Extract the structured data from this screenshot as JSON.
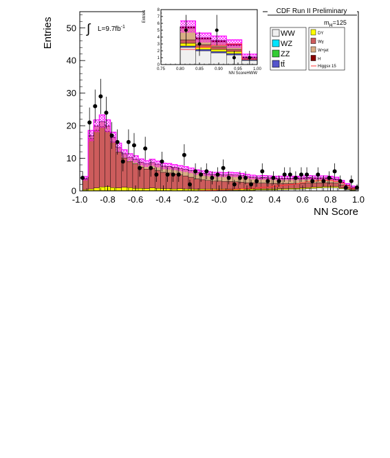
{
  "header": {
    "title": "CDF Run II Preliminary",
    "mass_label_pre": "m",
    "mass_label_sub": "H",
    "mass_label_post": "=125"
  },
  "luminosity": {
    "integral_sign": "∫",
    "text": "L=9.7fb",
    "sup": "-1"
  },
  "chart_data": [
    {
      "type": "bar",
      "stacked": true,
      "xlabel": "NN Score",
      "ylabel": "Entries",
      "xlim": [
        -1.0,
        1.0
      ],
      "ylim": [
        0,
        55
      ],
      "xticks": [
        -1.0,
        -0.8,
        -0.6,
        -0.4,
        -0.2,
        0.0,
        0.2,
        0.4,
        0.6,
        0.8,
        1.0
      ],
      "xtick_labels": [
        "-1.0",
        "-0.8",
        "-0.6",
        "-0.4",
        "-0.2",
        "-0.0",
        "0.2",
        "0.4",
        "0.6",
        "0.8",
        "1.0"
      ],
      "yticks": [
        0,
        10,
        20,
        30,
        40,
        50
      ],
      "ytick_labels": [
        "0",
        "10",
        "20",
        "30",
        "40",
        "50"
      ],
      "bin_edges": [
        -0.98,
        -0.94,
        -0.9,
        -0.86,
        -0.82,
        -0.78,
        -0.74,
        -0.7,
        -0.66,
        -0.62,
        -0.58,
        -0.54,
        -0.5,
        -0.46,
        -0.42,
        -0.38,
        -0.34,
        -0.3,
        -0.26,
        -0.22,
        -0.18,
        -0.14,
        -0.1,
        -0.06,
        -0.02,
        0.02,
        0.06,
        0.1,
        0.14,
        0.18,
        0.22,
        0.26,
        0.3,
        0.34,
        0.38,
        0.42,
        0.46,
        0.5,
        0.54,
        0.58,
        0.62,
        0.66,
        0.7,
        0.74,
        0.78,
        0.82,
        0.86,
        0.9,
        0.94,
        0.98
      ],
      "series": [
        {
          "name": "WW",
          "color": "#f0f0f0",
          "values": [
            0.1,
            0.1,
            0.1,
            0.1,
            0.1,
            0.1,
            0.1,
            0.1,
            0.1,
            0.1,
            0.1,
            0.1,
            0.1,
            0.1,
            0.1,
            0.1,
            0.1,
            0.1,
            0.1,
            0.1,
            0.1,
            0.2,
            0.2,
            0.2,
            0.2,
            0.2,
            0.2,
            0.2,
            0.2,
            0.2,
            0.2,
            0.3,
            0.3,
            0.3,
            0.3,
            0.4,
            0.4,
            0.5,
            0.5,
            0.6,
            0.7,
            0.8,
            0.9,
            1.0,
            1.0,
            1.0,
            0.7,
            0.4,
            0.2
          ]
        },
        {
          "name": "WZ",
          "color": "#00e5ff",
          "values": [
            0,
            0,
            0,
            0,
            0,
            0,
            0,
            0,
            0,
            0,
            0,
            0,
            0,
            0,
            0,
            0,
            0,
            0,
            0,
            0,
            0,
            0,
            0,
            0,
            0,
            0,
            0,
            0,
            0,
            0,
            0,
            0,
            0,
            0,
            0,
            0,
            0,
            0,
            0,
            0,
            0,
            0,
            0,
            0,
            0,
            0,
            0,
            0,
            0
          ]
        },
        {
          "name": "ZZ",
          "color": "#33cc33",
          "values": [
            0,
            0,
            0,
            0,
            0,
            0,
            0,
            0,
            0,
            0,
            0,
            0,
            0,
            0,
            0,
            0,
            0,
            0,
            0,
            0,
            0,
            0,
            0,
            0,
            0,
            0,
            0,
            0,
            0,
            0,
            0,
            0,
            0,
            0,
            0,
            0,
            0,
            0,
            0,
            0,
            0,
            0,
            0,
            0,
            0,
            0,
            0,
            0,
            0
          ]
        },
        {
          "name": "tt̄",
          "color": "#5555cc",
          "values": [
            0,
            0,
            0,
            0,
            0,
            0,
            0,
            0,
            0,
            0,
            0,
            0,
            0,
            0,
            0,
            0,
            0,
            0,
            0,
            0,
            0,
            0,
            0,
            0,
            0,
            0,
            0,
            0,
            0,
            0,
            0,
            0,
            0,
            0,
            0,
            0,
            0,
            0,
            0,
            0,
            0,
            0,
            0,
            0,
            0,
            0,
            0,
            0,
            0
          ]
        },
        {
          "name": "DY",
          "color": "#ffff00",
          "values": [
            0.3,
            0.5,
            0.8,
            1.1,
            1.2,
            0.9,
            0.8,
            1.0,
            0.9,
            0.7,
            0.7,
            0.6,
            0.8,
            0.7,
            0.6,
            0.6,
            0.5,
            0.6,
            0.5,
            0.5,
            0.4,
            0.4,
            0.4,
            0.4,
            0.4,
            0.4,
            0.4,
            0.4,
            0.4,
            0.3,
            0.4,
            0.3,
            0.3,
            0.3,
            0.3,
            0.3,
            0.3,
            0.3,
            0.3,
            0.3,
            0.3,
            0.3,
            0.3,
            0.3,
            0.3,
            0.3,
            0.2,
            0.2,
            0.2
          ]
        },
        {
          "name": "Wγ",
          "color": "#cc5c5c",
          "values": [
            3.2,
            15.5,
            17.8,
            18.5,
            17.0,
            14.0,
            11.0,
            9.0,
            8.0,
            7.5,
            6.5,
            6.0,
            6.0,
            5.5,
            5.0,
            4.8,
            4.6,
            4.2,
            4.0,
            3.6,
            3.2,
            2.8,
            2.6,
            2.4,
            2.4,
            2.3,
            2.3,
            2.2,
            2.1,
            2.0,
            1.9,
            1.8,
            1.8,
            1.7,
            1.7,
            1.6,
            1.6,
            1.5,
            1.5,
            1.4,
            1.4,
            1.3,
            1.3,
            1.2,
            1.2,
            1.1,
            0.9,
            0.6,
            0.3
          ]
        },
        {
          "name": "W+jet",
          "color": "#d9ae85",
          "values": [
            0.2,
            0.8,
            1.2,
            1.6,
            1.6,
            1.4,
            1.4,
            1.3,
            1.3,
            1.4,
            1.5,
            1.6,
            1.8,
            1.9,
            1.9,
            2.0,
            2.0,
            2.0,
            2.0,
            2.0,
            2.0,
            2.0,
            2.0,
            2.0,
            2.0,
            2.0,
            2.1,
            2.1,
            2.0,
            1.9,
            1.7,
            1.5,
            1.6,
            1.6,
            1.5,
            1.5,
            1.5,
            1.5,
            1.5,
            1.5,
            1.5,
            1.4,
            1.3,
            1.3,
            1.2,
            1.0,
            0.8,
            0.5,
            0.3
          ]
        },
        {
          "name": "H",
          "color": "#880000",
          "values": [
            0,
            0,
            0,
            0,
            0,
            0,
            0,
            0,
            0,
            0,
            0,
            0,
            0,
            0,
            0,
            0,
            0,
            0,
            0,
            0,
            0,
            0,
            0,
            0,
            0,
            0,
            0,
            0,
            0,
            0,
            0,
            0.1,
            0.1,
            0.1,
            0.1,
            0.1,
            0.1,
            0.1,
            0.1,
            0.2,
            0.2,
            0.2,
            0.2,
            0.2,
            0.2,
            0.2,
            0.1,
            0.1,
            0.1
          ]
        }
      ],
      "uncertainty_band": {
        "name": "",
        "color": "#ff00ff",
        "rel": 0.08
      },
      "higgs_overlay": {
        "name": "Higgsx 15",
        "color": "#ff3333",
        "values": [
          0,
          0,
          0,
          0,
          0,
          0,
          0,
          0,
          0,
          0,
          0,
          0,
          0,
          0,
          0,
          0,
          0,
          0,
          0,
          0,
          0,
          0.1,
          0.2,
          0.2,
          0.3,
          0.3,
          0.4,
          0.5,
          0.6,
          0.7,
          0.8,
          0.9,
          1.1,
          1.2,
          1.4,
          1.6,
          1.8,
          2.0,
          2.2,
          2.5,
          2.8,
          3.0,
          3.2,
          3.3,
          3.2,
          2.9,
          2.4,
          1.6,
          0.8
        ]
      },
      "data": {
        "name": "Data",
        "x": [
          -0.98,
          -0.93,
          -0.89,
          -0.85,
          -0.81,
          -0.77,
          -0.73,
          -0.69,
          -0.65,
          -0.61,
          -0.57,
          -0.53,
          -0.49,
          -0.45,
          -0.41,
          -0.37,
          -0.33,
          -0.29,
          -0.25,
          -0.21,
          -0.17,
          -0.13,
          -0.09,
          -0.05,
          -0.01,
          0.03,
          0.07,
          0.11,
          0.15,
          0.19,
          0.23,
          0.27,
          0.31,
          0.35,
          0.39,
          0.43,
          0.47,
          0.51,
          0.55,
          0.59,
          0.63,
          0.67,
          0.71,
          0.75,
          0.79,
          0.83,
          0.87,
          0.91,
          0.95,
          0.99
        ],
        "y": [
          4,
          21,
          26,
          29,
          24,
          17,
          15,
          9,
          15,
          14,
          7,
          13,
          7,
          5,
          9,
          5,
          5,
          5,
          11,
          2,
          6,
          5,
          6,
          4,
          5,
          7,
          4,
          2,
          4,
          4,
          2,
          3,
          6,
          3,
          4,
          3,
          5,
          5,
          4,
          5,
          5,
          3,
          5,
          3,
          4,
          6,
          3,
          1,
          3,
          1
        ]
      },
      "legend_position": "top-right",
      "grid": false
    },
    {
      "type": "bar",
      "stacked": true,
      "inset": true,
      "xlabel": "NN ScoreHWW",
      "ylabel": "Entries",
      "xlim": [
        0.75,
        1.0
      ],
      "ylim": [
        0,
        8
      ],
      "xticks": [
        0.75,
        0.8,
        0.85,
        0.9,
        0.95,
        1.0
      ],
      "xtick_labels": [
        "0.75",
        "0.80",
        "0.85",
        "0.90",
        "0.95",
        "1.00"
      ],
      "yticks": [
        0,
        1,
        2,
        3,
        4,
        5,
        6,
        7,
        8
      ],
      "ytick_labels": [
        "0",
        "1",
        "2",
        "3",
        "4",
        "5",
        "6",
        "7",
        "8"
      ],
      "bin_edges": [
        0.8,
        0.84,
        0.88,
        0.92,
        0.96,
        1.0
      ],
      "series": [
        {
          "name": "WW",
          "color": "#f0f0f0",
          "values": [
            2.5,
            2.0,
            1.7,
            1.4,
            0.6
          ]
        },
        {
          "name": "tt̄",
          "color": "#5555cc",
          "values": [
            0.2,
            0.2,
            0.2,
            0.2,
            0.1
          ]
        },
        {
          "name": "DY",
          "color": "#ffff00",
          "values": [
            0.4,
            0.3,
            0.3,
            0.3,
            0.1
          ]
        },
        {
          "name": "Wγ",
          "color": "#cc5c5c",
          "values": [
            0.5,
            0.4,
            0.4,
            0.3,
            0.1
          ]
        },
        {
          "name": "W+jet",
          "color": "#d9ae85",
          "values": [
            1.7,
            0.8,
            0.7,
            0.6,
            0.1
          ]
        },
        {
          "name": "H",
          "color": "#880000",
          "values": [
            0.2,
            0.2,
            0.2,
            0.2,
            0.1
          ]
        }
      ],
      "uncertainty_band": {
        "color": "#ff00ff",
        "rel": 0.1
      },
      "higgs_overlay": {
        "name": "Higgsx 15",
        "color": "#ff3333",
        "values": [
          2.2,
          2.5,
          2.8,
          3.0,
          0.8
        ]
      },
      "data": {
        "name": "Data",
        "x": [
          0.815,
          0.85,
          0.895,
          0.94,
          0.98
        ],
        "y": [
          5,
          3,
          5,
          1,
          1
        ]
      },
      "grid": false
    }
  ],
  "legend": {
    "col1": [
      {
        "label": "WW",
        "color": "#f0f0f0"
      },
      {
        "label": "WZ",
        "color": "#00e5ff"
      },
      {
        "label": "ZZ",
        "color": "#33cc33"
      },
      {
        "label": "tt̄",
        "color": "#5555cc"
      }
    ],
    "col2": [
      {
        "label": "DY",
        "color": "#ffff00"
      },
      {
        "label": "Wγ",
        "color": "#cc5c5c"
      },
      {
        "label": "W+jet",
        "color": "#d9ae85"
      },
      {
        "label": "H",
        "color": "#880000"
      }
    ],
    "line_item": {
      "label": "Higgsx 15",
      "color": "#ff3333"
    }
  }
}
